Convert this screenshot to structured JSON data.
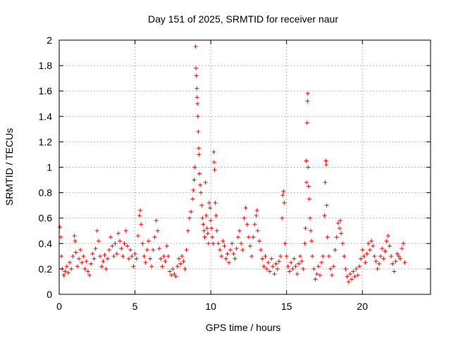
{
  "chart_data": {
    "type": "scatter",
    "title": "Day 151 of 2025, SRMTID for receiver naur",
    "xlabel": "GPS time / hours",
    "ylabel": "SRMTID / TECUs",
    "xlim": [
      0,
      24.5
    ],
    "ylim": [
      0,
      2
    ],
    "xticks": [
      0,
      5,
      10,
      15,
      20
    ],
    "xtick_labels": [
      "0",
      "5",
      "10",
      "15",
      "20"
    ],
    "yticks": [
      0,
      0.2,
      0.4,
      0.6,
      0.8,
      1,
      1.2,
      1.4,
      1.6,
      1.8,
      2
    ],
    "ytick_labels": [
      "0",
      "0.2",
      "0.4",
      "0.6",
      "0.8",
      "1",
      "1.2",
      "1.4",
      "1.6",
      "1.8",
      "2"
    ],
    "grid": true,
    "marker": "plus",
    "series": [
      {
        "name": "SRMTID",
        "color": "#ff0000",
        "points": [
          [
            0.05,
            0.53
          ],
          [
            0.1,
            0.45
          ],
          [
            0.15,
            0.3
          ],
          [
            0.2,
            0.2
          ],
          [
            0.3,
            0.15
          ],
          [
            0.4,
            0.18
          ],
          [
            0.5,
            0.22
          ],
          [
            0.6,
            0.17
          ],
          [
            0.7,
            0.25
          ],
          [
            0.8,
            0.2
          ],
          [
            0.9,
            0.3
          ],
          [
            1.0,
            0.46
          ],
          [
            1.05,
            0.42
          ],
          [
            1.1,
            0.33
          ],
          [
            1.2,
            0.22
          ],
          [
            1.3,
            0.28
          ],
          [
            1.4,
            0.35
          ],
          [
            1.5,
            0.25
          ],
          [
            1.6,
            0.3
          ],
          [
            1.7,
            0.2
          ],
          [
            1.8,
            0.26
          ],
          [
            1.9,
            0.18
          ],
          [
            2.0,
            0.15
          ],
          [
            2.1,
            0.24
          ],
          [
            2.2,
            0.32
          ],
          [
            2.3,
            0.28
          ],
          [
            2.4,
            0.36
          ],
          [
            2.5,
            0.5
          ],
          [
            2.6,
            0.42
          ],
          [
            2.7,
            0.3
          ],
          [
            2.8,
            0.22
          ],
          [
            2.9,
            0.26
          ],
          [
            3.0,
            0.31
          ],
          [
            3.1,
            0.2
          ],
          [
            3.2,
            0.28
          ],
          [
            3.3,
            0.35
          ],
          [
            3.4,
            0.45
          ],
          [
            3.5,
            0.38
          ],
          [
            3.6,
            0.3
          ],
          [
            3.7,
            0.4
          ],
          [
            3.8,
            0.32
          ],
          [
            3.9,
            0.48
          ],
          [
            4.0,
            0.42
          ],
          [
            4.1,
            0.36
          ],
          [
            4.2,
            0.3
          ],
          [
            4.3,
            0.4
          ],
          [
            4.4,
            0.5
          ],
          [
            4.5,
            0.38
          ],
          [
            4.6,
            0.28
          ],
          [
            4.7,
            0.35
          ],
          [
            4.8,
            0.3
          ],
          [
            4.9,
            0.22
          ],
          [
            5.0,
            0.32
          ],
          [
            5.1,
            0.28
          ],
          [
            5.2,
            0.46
          ],
          [
            5.3,
            0.62
          ],
          [
            5.35,
            0.66
          ],
          [
            5.4,
            0.55
          ],
          [
            5.5,
            0.4
          ],
          [
            5.6,
            0.3
          ],
          [
            5.7,
            0.25
          ],
          [
            5.8,
            0.35
          ],
          [
            5.9,
            0.42
          ],
          [
            6.0,
            0.28
          ],
          [
            6.1,
            0.22
          ],
          [
            6.2,
            0.35
          ],
          [
            6.3,
            0.45
          ],
          [
            6.4,
            0.58
          ],
          [
            6.5,
            0.5
          ],
          [
            6.6,
            0.36
          ],
          [
            6.7,
            0.28
          ],
          [
            6.8,
            0.22
          ],
          [
            6.9,
            0.3
          ],
          [
            7.0,
            0.26
          ],
          [
            7.1,
            0.38
          ],
          [
            7.2,
            0.3
          ],
          [
            7.3,
            0.18
          ],
          [
            7.4,
            0.15
          ],
          [
            7.5,
            0.2
          ],
          [
            7.6,
            0.16
          ],
          [
            7.7,
            0.14
          ],
          [
            7.8,
            0.22
          ],
          [
            7.9,
            0.28
          ],
          [
            8.0,
            0.24
          ],
          [
            8.1,
            0.3
          ],
          [
            8.2,
            0.26
          ],
          [
            8.3,
            0.2
          ],
          [
            8.4,
            0.35
          ],
          [
            8.5,
            0.5
          ],
          [
            8.6,
            0.6
          ],
          [
            8.7,
            0.65
          ],
          [
            8.8,
            0.75
          ],
          [
            8.85,
            0.82
          ],
          [
            8.9,
            0.9
          ],
          [
            8.95,
            1.0
          ],
          [
            9.0,
            1.95
          ],
          [
            9.02,
            1.78
          ],
          [
            9.05,
            1.72
          ],
          [
            9.08,
            1.62
          ],
          [
            9.1,
            1.55
          ],
          [
            9.12,
            1.5
          ],
          [
            9.15,
            1.4
          ],
          [
            9.18,
            1.28
          ],
          [
            9.2,
            1.15
          ],
          [
            9.22,
            1.1
          ],
          [
            9.25,
            0.95
          ],
          [
            9.3,
            0.86
          ],
          [
            9.35,
            0.8
          ],
          [
            9.4,
            0.7
          ],
          [
            9.45,
            0.6
          ],
          [
            9.5,
            0.55
          ],
          [
            9.55,
            0.5
          ],
          [
            9.6,
            0.45
          ],
          [
            9.65,
            0.88
          ],
          [
            9.7,
            0.62
          ],
          [
            9.75,
            0.52
          ],
          [
            9.8,
            0.48
          ],
          [
            9.85,
            0.4
          ],
          [
            9.9,
            0.72
          ],
          [
            9.95,
            0.68
          ],
          [
            10.0,
            0.58
          ],
          [
            10.05,
            0.52
          ],
          [
            10.1,
            0.45
          ],
          [
            10.15,
            0.4
          ],
          [
            10.2,
            1.12
          ],
          [
            10.22,
            1.04
          ],
          [
            10.25,
            0.98
          ],
          [
            10.3,
            0.72
          ],
          [
            10.35,
            0.62
          ],
          [
            10.4,
            0.5
          ],
          [
            10.5,
            0.4
          ],
          [
            10.6,
            0.35
          ],
          [
            10.7,
            0.3
          ],
          [
            10.8,
            0.42
          ],
          [
            10.9,
            0.38
          ],
          [
            11.0,
            0.28
          ],
          [
            11.1,
            0.32
          ],
          [
            11.2,
            0.25
          ],
          [
            11.3,
            0.35
          ],
          [
            11.4,
            0.4
          ],
          [
            11.5,
            0.32
          ],
          [
            11.6,
            0.28
          ],
          [
            11.7,
            0.36
          ],
          [
            11.8,
            0.45
          ],
          [
            11.9,
            0.5
          ],
          [
            12.0,
            0.4
          ],
          [
            12.1,
            0.35
          ],
          [
            12.2,
            0.6
          ],
          [
            12.3,
            0.68
          ],
          [
            12.4,
            0.55
          ],
          [
            12.5,
            0.45
          ],
          [
            12.6,
            0.38
          ],
          [
            12.7,
            0.3
          ],
          [
            12.8,
            0.45
          ],
          [
            12.9,
            0.55
          ],
          [
            13.0,
            0.62
          ],
          [
            13.05,
            0.66
          ],
          [
            13.1,
            0.5
          ],
          [
            13.2,
            0.42
          ],
          [
            13.3,
            0.35
          ],
          [
            13.4,
            0.28
          ],
          [
            13.5,
            0.22
          ],
          [
            13.6,
            0.3
          ],
          [
            13.7,
            0.2
          ],
          [
            13.8,
            0.25
          ],
          [
            13.9,
            0.18
          ],
          [
            14.0,
            0.28
          ],
          [
            14.1,
            0.22
          ],
          [
            14.2,
            0.16
          ],
          [
            14.3,
            0.24
          ],
          [
            14.4,
            0.2
          ],
          [
            14.5,
            0.26
          ],
          [
            14.6,
            0.3
          ],
          [
            14.7,
            0.6
          ],
          [
            14.75,
            0.78
          ],
          [
            14.8,
            0.81
          ],
          [
            14.85,
            0.72
          ],
          [
            14.9,
            0.4
          ],
          [
            15.0,
            0.3
          ],
          [
            15.1,
            0.22
          ],
          [
            15.2,
            0.18
          ],
          [
            15.3,
            0.25
          ],
          [
            15.4,
            0.2
          ],
          [
            15.5,
            0.28
          ],
          [
            15.6,
            0.22
          ],
          [
            15.7,
            0.16
          ],
          [
            15.8,
            0.24
          ],
          [
            15.9,
            0.3
          ],
          [
            16.0,
            0.26
          ],
          [
            16.1,
            0.2
          ],
          [
            16.2,
            0.4
          ],
          [
            16.25,
            0.52
          ],
          [
            16.3,
            1.05
          ],
          [
            16.32,
            0.88
          ],
          [
            16.35,
            1.35
          ],
          [
            16.38,
            1.52
          ],
          [
            16.4,
            1.58
          ],
          [
            16.42,
            1.0
          ],
          [
            16.45,
            0.85
          ],
          [
            16.5,
            0.75
          ],
          [
            16.55,
            0.6
          ],
          [
            16.6,
            0.5
          ],
          [
            16.65,
            0.42
          ],
          [
            16.7,
            0.3
          ],
          [
            16.8,
            0.2
          ],
          [
            16.9,
            0.12
          ],
          [
            17.0,
            0.16
          ],
          [
            17.1,
            0.22
          ],
          [
            17.2,
            0.15
          ],
          [
            17.3,
            0.25
          ],
          [
            17.4,
            0.3
          ],
          [
            17.5,
            0.62
          ],
          [
            17.55,
            0.88
          ],
          [
            17.6,
            1.05
          ],
          [
            17.62,
            1.02
          ],
          [
            17.65,
            0.7
          ],
          [
            17.7,
            0.45
          ],
          [
            17.8,
            0.3
          ],
          [
            17.9,
            0.2
          ],
          [
            18.0,
            0.15
          ],
          [
            18.1,
            0.22
          ],
          [
            18.2,
            0.35
          ],
          [
            18.3,
            0.45
          ],
          [
            18.4,
            0.56
          ],
          [
            18.5,
            0.52
          ],
          [
            18.55,
            0.58
          ],
          [
            18.6,
            0.48
          ],
          [
            18.7,
            0.4
          ],
          [
            18.8,
            0.3
          ],
          [
            18.9,
            0.2
          ],
          [
            19.0,
            0.14
          ],
          [
            19.1,
            0.1
          ],
          [
            19.2,
            0.16
          ],
          [
            19.3,
            0.12
          ],
          [
            19.4,
            0.18
          ],
          [
            19.5,
            0.14
          ],
          [
            19.6,
            0.2
          ],
          [
            19.7,
            0.15
          ],
          [
            19.8,
            0.22
          ],
          [
            19.9,
            0.28
          ],
          [
            20.0,
            0.35
          ],
          [
            20.1,
            0.3
          ],
          [
            20.2,
            0.25
          ],
          [
            20.3,
            0.32
          ],
          [
            20.4,
            0.4
          ],
          [
            20.5,
            0.35
          ],
          [
            20.6,
            0.42
          ],
          [
            20.7,
            0.38
          ],
          [
            20.8,
            0.3
          ],
          [
            20.9,
            0.26
          ],
          [
            21.0,
            0.2
          ],
          [
            21.1,
            0.24
          ],
          [
            21.2,
            0.3
          ],
          [
            21.3,
            0.36
          ],
          [
            21.4,
            0.28
          ],
          [
            21.5,
            0.34
          ],
          [
            21.6,
            0.42
          ],
          [
            21.7,
            0.46
          ],
          [
            21.8,
            0.38
          ],
          [
            21.9,
            0.3
          ],
          [
            22.0,
            0.24
          ],
          [
            22.1,
            0.18
          ],
          [
            22.2,
            0.26
          ],
          [
            22.3,
            0.32
          ],
          [
            22.4,
            0.3
          ],
          [
            22.5,
            0.28
          ],
          [
            22.6,
            0.36
          ],
          [
            22.7,
            0.4
          ],
          [
            22.8,
            0.25
          ]
        ]
      }
    ]
  }
}
